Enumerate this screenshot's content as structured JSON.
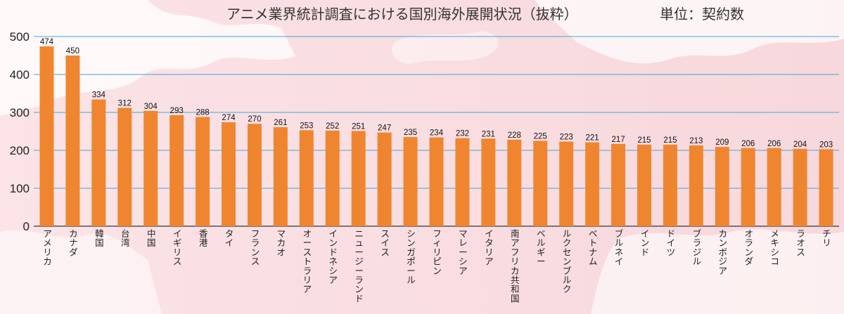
{
  "chart_data": {
    "type": "bar",
    "title": "アニメ業界統計調査における国別海外展開状況（抜粋）",
    "unit_label": "単位：契約数",
    "ylim": [
      0,
      500
    ],
    "yticks": [
      0,
      100,
      200,
      300,
      400,
      500
    ],
    "grid": true,
    "legend": "none",
    "bar_color": "#f08530",
    "grid_color": "#3fa7d6",
    "categories": [
      "アメリカ",
      "カナダ",
      "韓国",
      "台湾",
      "中国",
      "イギリス",
      "香港",
      "タイ",
      "フランス",
      "マカオ",
      "オーストラリア",
      "インドネシア",
      "ニュージーランド",
      "スイス",
      "シンガポール",
      "フィリピン",
      "マレーシア",
      "イタリア",
      "南アフリカ共和国",
      "ベルギー",
      "ルクセンブルク",
      "ベトナム",
      "ブルネイ",
      "インド",
      "ドイツ",
      "ブラジル",
      "カンボジア",
      "オランダ",
      "メキシコ",
      "ラオス",
      "チリ"
    ],
    "values": [
      474,
      450,
      334,
      312,
      304,
      293,
      288,
      274,
      270,
      261,
      253,
      252,
      251,
      247,
      235,
      234,
      232,
      231,
      228,
      225,
      223,
      221,
      217,
      215,
      215,
      213,
      209,
      206,
      206,
      204,
      203
    ]
  }
}
